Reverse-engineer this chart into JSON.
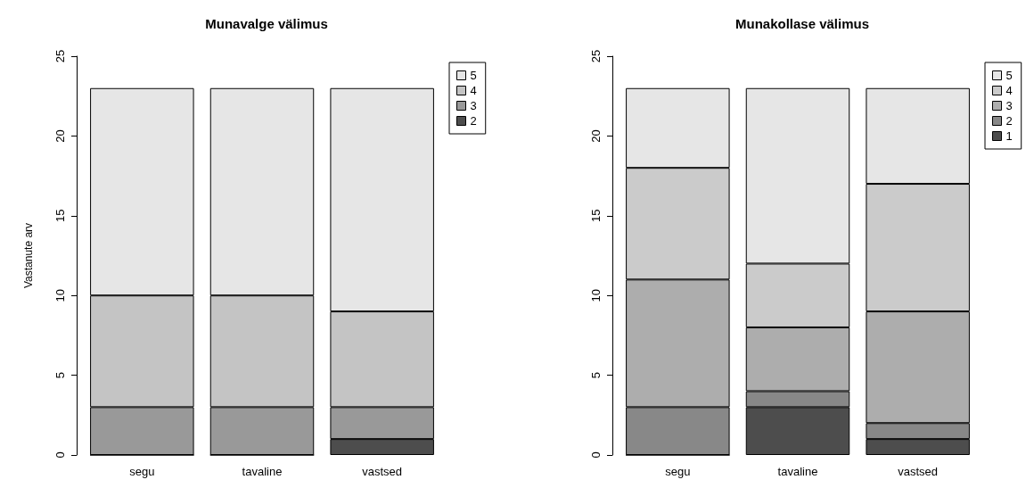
{
  "chart_data": [
    {
      "type": "bar",
      "title": "Munavalge välimus",
      "ylabel": "Vastanute arv",
      "stacked": true,
      "categories": [
        "segu",
        "tavaline",
        "vastsed"
      ],
      "series": [
        {
          "name": "2",
          "color": "#4d4d4d",
          "values": [
            0,
            0,
            1
          ]
        },
        {
          "name": "3",
          "color": "#999999",
          "values": [
            3,
            3,
            2
          ]
        },
        {
          "name": "4",
          "color": "#c4c4c4",
          "values": [
            7,
            7,
            6
          ]
        },
        {
          "name": "5",
          "color": "#e6e6e6",
          "values": [
            13,
            13,
            14
          ]
        }
      ],
      "ylim": [
        0,
        25
      ],
      "yticks": [
        0,
        5,
        10,
        15,
        20,
        25
      ],
      "legend": "top right"
    },
    {
      "type": "bar",
      "title": "Munakollase välimus",
      "stacked": true,
      "categories": [
        "segu",
        "tavaline",
        "vastsed"
      ],
      "series": [
        {
          "name": "1",
          "color": "#4d4d4d",
          "values": [
            0,
            3,
            1
          ]
        },
        {
          "name": "2",
          "color": "#888888",
          "values": [
            3,
            1,
            1
          ]
        },
        {
          "name": "3",
          "color": "#adadad",
          "values": [
            8,
            4,
            7
          ]
        },
        {
          "name": "4",
          "color": "#cbcbcb",
          "values": [
            7,
            4,
            8
          ]
        },
        {
          "name": "5",
          "color": "#e6e6e6",
          "values": [
            5,
            11,
            6
          ]
        }
      ],
      "ylim": [
        0,
        25
      ],
      "yticks": [
        0,
        5,
        10,
        15,
        20,
        25
      ],
      "legend": "top right"
    }
  ]
}
